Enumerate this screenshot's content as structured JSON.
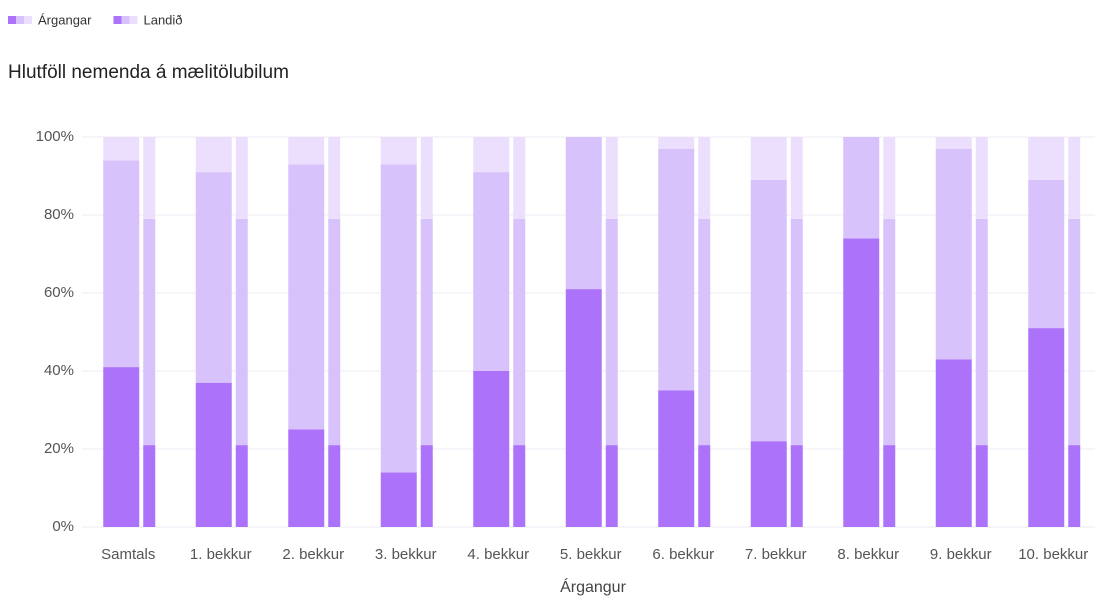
{
  "chart_data": {
    "type": "bar",
    "stacked": true,
    "legend": "top-left",
    "grid": true,
    "title": "Hlutföll nemenda á mælitölubilum",
    "x_label": "Árgangur",
    "categories": [
      "Samtals",
      "1. bekkur",
      "2. bekkur",
      "3. bekkur",
      "4. bekkur",
      "5. bekkur",
      "6. bekkur",
      "7. bekkur",
      "8. bekkur",
      "9. bekkur",
      "10. bekkur"
    ],
    "ylim": [
      0,
      100
    ],
    "yticks": [
      {
        "value": 0,
        "label": "0%"
      },
      {
        "value": 20,
        "label": "20%"
      },
      {
        "value": 40,
        "label": "40%"
      },
      {
        "value": 60,
        "label": "60%"
      },
      {
        "value": 80,
        "label": "80%"
      },
      {
        "value": 100,
        "label": "100%"
      }
    ],
    "series": [
      {
        "name": "Árgangar",
        "stack": [
          {
            "color": "#ad72fa",
            "values": [
              41,
              37,
              25,
              14,
              40,
              61,
              35,
              22,
              74,
              43,
              51
            ]
          },
          {
            "color": "#d8c2fc",
            "values": [
              53,
              54,
              68,
              79,
              51,
              39,
              62,
              67,
              26,
              54,
              38
            ]
          },
          {
            "color": "#ecdffd",
            "values": [
              6,
              9,
              7,
              7,
              9,
              0,
              3,
              11,
              0,
              3,
              11
            ]
          }
        ]
      },
      {
        "name": "Landið",
        "stack": [
          {
            "color": "#ad72fa",
            "values": [
              21,
              21,
              21,
              21,
              21,
              21,
              21,
              21,
              21,
              21,
              21
            ]
          },
          {
            "color": "#d8c2fc",
            "values": [
              58,
              58,
              58,
              58,
              58,
              58,
              58,
              58,
              58,
              58,
              58
            ]
          },
          {
            "color": "#ecdffd",
            "values": [
              21,
              21,
              21,
              21,
              21,
              21,
              21,
              21,
              21,
              21,
              21
            ]
          }
        ]
      }
    ]
  }
}
